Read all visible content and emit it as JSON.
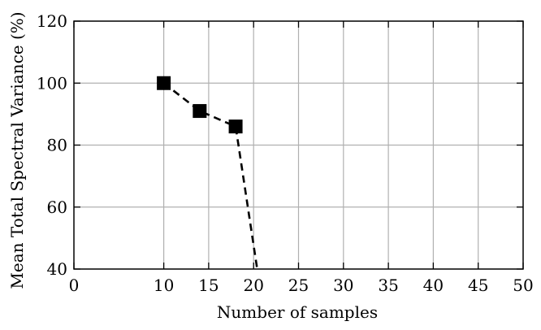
{
  "chart_data": {
    "type": "line",
    "title": "",
    "xlabel": "Number of samples",
    "ylabel": "Mean Total Spectral Variance (%)",
    "xlim": [
      0,
      50
    ],
    "ylim": [
      40,
      120
    ],
    "x_ticks": [
      0,
      10,
      15,
      20,
      25,
      30,
      35,
      40,
      45,
      50
    ],
    "y_ticks": [
      40,
      60,
      80,
      100,
      120
    ],
    "grid": true,
    "series": [
      {
        "x": [
          10,
          14,
          18,
          20.4
        ],
        "y": [
          100,
          91,
          86,
          40
        ],
        "marker": "square",
        "line_style": "dashed",
        "color": "#000000"
      }
    ]
  }
}
